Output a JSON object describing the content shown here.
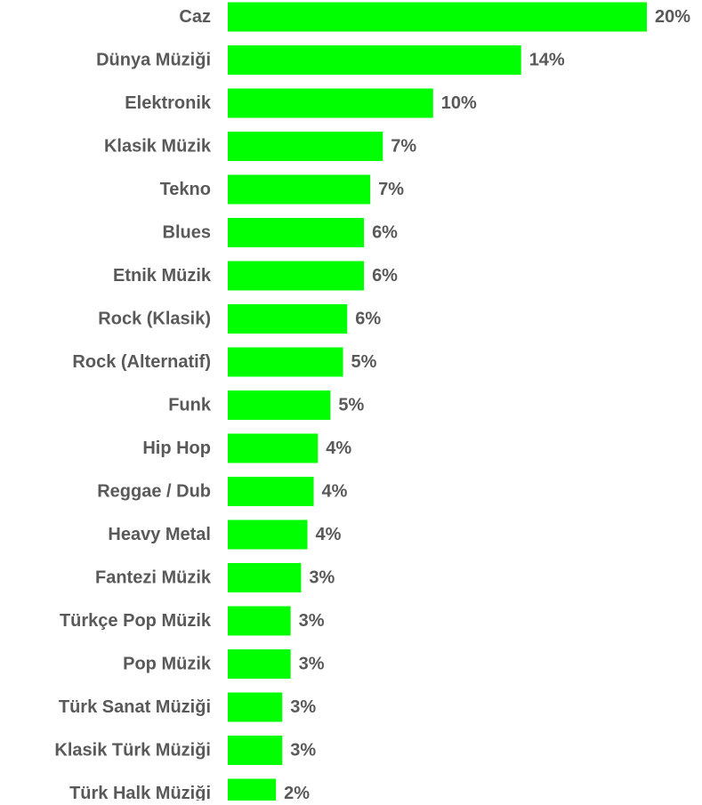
{
  "chart_data": {
    "type": "bar",
    "orientation": "horizontal",
    "categories": [
      "Caz",
      "Dünya Müziği",
      "Elektronik",
      "Klasik Müzik",
      "Tekno",
      "Blues",
      "Etnik Müzik",
      "Rock (Klasik)",
      "Rock (Alternatif)",
      "Funk",
      "Hip Hop",
      "Reggae / Dub",
      "Heavy Metal",
      "Fantezi Müzik",
      "Türkçe Pop Müzik",
      "Pop Müzik",
      "Türk Sanat Müziği",
      "Klasik Türk Müziği",
      "Türk Halk Müziği"
    ],
    "values": [
      20,
      14,
      10,
      7,
      7,
      6,
      6,
      6,
      5,
      5,
      4,
      4,
      4,
      3,
      3,
      3,
      3,
      3,
      2
    ],
    "value_precise": [
      20.0,
      14.0,
      9.8,
      7.4,
      6.8,
      6.5,
      6.5,
      5.7,
      5.5,
      4.9,
      4.3,
      4.1,
      3.8,
      3.5,
      3.0,
      3.0,
      2.6,
      2.6,
      2.3
    ],
    "value_labels": [
      "20%",
      "14%",
      "10%",
      "7%",
      "7%",
      "6%",
      "6%",
      "6%",
      "5%",
      "5%",
      "4%",
      "4%",
      "4%",
      "3%",
      "3%",
      "3%",
      "3%",
      "3%",
      "2%"
    ],
    "title": "",
    "xlabel": "",
    "ylabel": "",
    "xlim": [
      0,
      20
    ],
    "grid": false,
    "legend": "none",
    "bar_color": "#00ff00",
    "category_label_color": "#595959",
    "value_label_color": "#595959"
  }
}
